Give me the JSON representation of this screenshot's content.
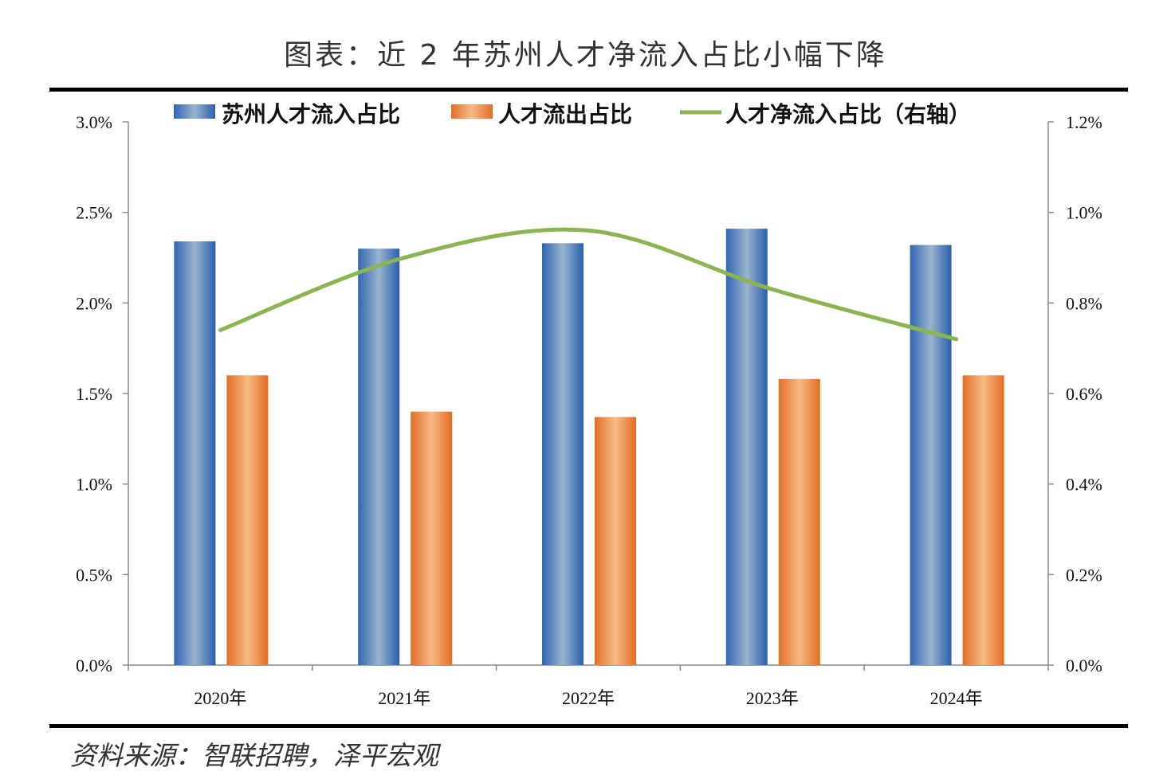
{
  "page": {
    "title": "图表：近 2 年苏州人才净流入占比小幅下降",
    "source": "资料来源：智联招聘，泽平宏观"
  },
  "colors": {
    "inflow_bar": "#4a7fc0",
    "outflow_bar": "#ee8a3c",
    "net_line": "#8cb552",
    "axis": "#888888"
  },
  "chart_data": {
    "type": "bar",
    "categories": [
      "2020年",
      "2021年",
      "2022年",
      "2023年",
      "2024年"
    ],
    "series": [
      {
        "name": "苏州人才流入占比",
        "kind": "bar",
        "axis": "left",
        "values": [
          2.34,
          2.3,
          2.33,
          2.41,
          2.32
        ]
      },
      {
        "name": "人才流出占比",
        "kind": "bar",
        "axis": "left",
        "values": [
          1.6,
          1.4,
          1.37,
          1.58,
          1.6
        ]
      },
      {
        "name": "人才净流入占比（右轴）",
        "kind": "line",
        "axis": "right",
        "smooth": true,
        "values": [
          0.74,
          0.9,
          0.96,
          0.83,
          0.72
        ]
      }
    ],
    "y_left": {
      "min": 0,
      "max": 3.0,
      "ticks": [
        "0.0%",
        "0.5%",
        "1.0%",
        "1.5%",
        "2.0%",
        "2.5%",
        "3.0%"
      ]
    },
    "y_right": {
      "min": 0,
      "max": 1.2,
      "ticks": [
        "0.0%",
        "0.2%",
        "0.4%",
        "0.6%",
        "0.8%",
        "1.0%",
        "1.2%"
      ]
    },
    "legend": "top",
    "grid": false
  }
}
